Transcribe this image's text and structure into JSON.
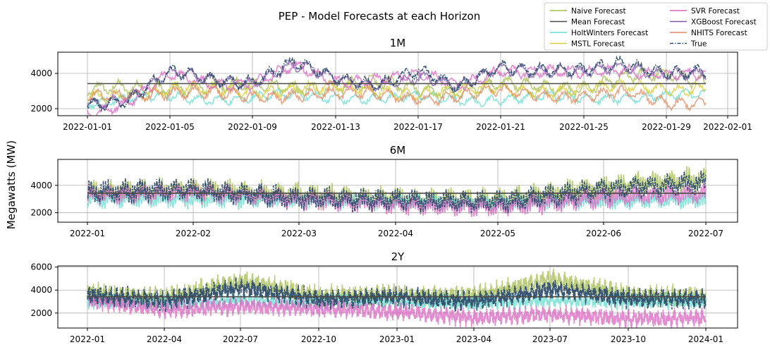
{
  "figure": {
    "title": "PEP - Model Forecasts at each Horizon",
    "ylabel": "Megawatts (MW)"
  },
  "legend": {
    "placement": "top-right",
    "entries": [
      {
        "label": "Naive Forecast",
        "color": "#a6bd4f",
        "style": "solid"
      },
      {
        "label": "SVR Forecast",
        "color": "#d966c0",
        "style": "solid"
      },
      {
        "label": "Mean Forecast",
        "color": "#4a4a4a",
        "style": "solid"
      },
      {
        "label": "XGBoost Forecast",
        "color": "#7b5aa6",
        "style": "solid"
      },
      {
        "label": "HoltWinters Forecast",
        "color": "#67dcd0",
        "style": "solid"
      },
      {
        "label": "NHITS Forecast",
        "color": "#e08a60",
        "style": "solid"
      },
      {
        "label": "MSTL Forecast",
        "color": "#d9cc3a",
        "style": "solid"
      },
      {
        "label": "True",
        "color": "#2f4d6e",
        "style": "dashdot"
      }
    ]
  },
  "chart_data": [
    {
      "type": "line",
      "title": "1M",
      "xlabel": "",
      "ylabel": "",
      "grid": true,
      "x_ticks": [
        "2022-01-01",
        "2022-01-05",
        "2022-01-09",
        "2022-01-13",
        "2022-01-17",
        "2022-01-21",
        "2022-01-25",
        "2022-01-29",
        "2022-02-01"
      ],
      "y_ticks": [
        2000,
        4000
      ],
      "ylim": [
        1600,
        5200
      ],
      "series": [
        {
          "name": "Mean Forecast",
          "values": [
            3420,
            3420
          ]
        },
        {
          "name": "True",
          "x": [
            "2022-01-01",
            "2022-01-03",
            "2022-01-05",
            "2022-01-07",
            "2022-01-09",
            "2022-01-11",
            "2022-01-13",
            "2022-01-15",
            "2022-01-17",
            "2022-01-19",
            "2022-01-21",
            "2022-01-23",
            "2022-01-25",
            "2022-01-27",
            "2022-01-29",
            "2022-01-31"
          ],
          "values": [
            2300,
            2600,
            4000,
            3600,
            3700,
            4600,
            3600,
            3500,
            4200,
            3000,
            4500,
            4300,
            4000,
            4600,
            4200,
            4000
          ]
        },
        {
          "name": "XGBoost Forecast",
          "x": [
            "2022-01-01",
            "2022-01-03",
            "2022-01-05",
            "2022-01-07",
            "2022-01-09",
            "2022-01-11",
            "2022-01-13",
            "2022-01-15",
            "2022-01-17",
            "2022-01-19",
            "2022-01-21",
            "2022-01-23",
            "2022-01-25",
            "2022-01-27",
            "2022-01-29",
            "2022-01-31"
          ],
          "values": [
            2300,
            2700,
            3900,
            3600,
            3600,
            4400,
            3600,
            3500,
            3800,
            3100,
            4400,
            4200,
            3900,
            4400,
            4100,
            3900
          ]
        },
        {
          "name": "SVR Forecast",
          "x": [
            "2022-01-01",
            "2022-01-03",
            "2022-01-05",
            "2022-01-07",
            "2022-01-09",
            "2022-01-11",
            "2022-01-13",
            "2022-01-15",
            "2022-01-17",
            "2022-01-19",
            "2022-01-21",
            "2022-01-23",
            "2022-01-25",
            "2022-01-27",
            "2022-01-29",
            "2022-01-31"
          ],
          "values": [
            1800,
            2400,
            3800,
            3500,
            3500,
            4300,
            3500,
            3800,
            3900,
            3200,
            4300,
            4100,
            3900,
            4300,
            4000,
            3800
          ]
        },
        {
          "name": "Naive Forecast",
          "x": [
            "2022-01-01",
            "2022-01-03",
            "2022-01-05",
            "2022-01-07",
            "2022-01-09",
            "2022-01-11",
            "2022-01-13",
            "2022-01-15",
            "2022-01-17",
            "2022-01-19",
            "2022-01-21",
            "2022-01-23",
            "2022-01-25",
            "2022-01-27",
            "2022-01-29",
            "2022-01-31"
          ],
          "values": [
            2900,
            3100,
            3300,
            3200,
            3200,
            3300,
            3300,
            3300,
            3200,
            3100,
            3300,
            3200,
            3300,
            3700,
            3800,
            3600
          ]
        },
        {
          "name": "HoltWinters Forecast",
          "x": [
            "2022-01-01",
            "2022-01-03",
            "2022-01-05",
            "2022-01-07",
            "2022-01-09",
            "2022-01-11",
            "2022-01-13",
            "2022-01-15",
            "2022-01-17",
            "2022-01-19",
            "2022-01-21",
            "2022-01-23",
            "2022-01-25",
            "2022-01-27",
            "2022-01-29",
            "2022-01-31"
          ],
          "values": [
            2400,
            2500,
            2700,
            2600,
            2600,
            2700,
            2700,
            2600,
            2600,
            2500,
            2600,
            2600,
            2600,
            2700,
            2700,
            2700
          ]
        },
        {
          "name": "MSTL Forecast",
          "x": [
            "2022-01-01",
            "2022-01-03",
            "2022-01-05",
            "2022-01-07",
            "2022-01-09",
            "2022-01-11",
            "2022-01-13",
            "2022-01-15",
            "2022-01-17",
            "2022-01-19",
            "2022-01-21",
            "2022-01-23",
            "2022-01-25",
            "2022-01-27",
            "2022-01-29",
            "2022-01-31"
          ],
          "values": [
            2600,
            2900,
            3100,
            3000,
            3000,
            3200,
            3100,
            3000,
            3000,
            2900,
            3100,
            3100,
            3100,
            3200,
            3200,
            3200
          ]
        },
        {
          "name": "NHITS Forecast",
          "x": [
            "2022-01-01",
            "2022-01-03",
            "2022-01-05",
            "2022-01-07",
            "2022-01-09",
            "2022-01-11",
            "2022-01-13",
            "2022-01-15",
            "2022-01-17",
            "2022-01-19",
            "2022-01-21",
            "2022-01-23",
            "2022-01-25",
            "2022-01-27",
            "2022-01-29",
            "2022-01-31"
          ],
          "values": [
            2500,
            2800,
            3000,
            2800,
            2600,
            2900,
            2800,
            2700,
            2700,
            2700,
            2900,
            2800,
            2800,
            2800,
            2300,
            2500
          ]
        }
      ]
    },
    {
      "type": "line",
      "title": "6M",
      "xlabel": "",
      "ylabel": "",
      "grid": true,
      "x_ticks": [
        "2022-01",
        "2022-02",
        "2022-03",
        "2022-04",
        "2022-05",
        "2022-06",
        "2022-07"
      ],
      "y_ticks": [
        2000,
        4000
      ],
      "ylim": [
        1300,
        5900
      ],
      "series": [
        {
          "name": "Mean Forecast",
          "values": [
            3420,
            3420
          ]
        },
        {
          "name": "True",
          "x": [
            "2022-01",
            "2022-02",
            "2022-03",
            "2022-04",
            "2022-05",
            "2022-06",
            "2022-07"
          ],
          "values": [
            3500,
            3700,
            3100,
            2900,
            2800,
            3700,
            4200
          ]
        },
        {
          "name": "SVR Forecast",
          "x": [
            "2022-01",
            "2022-02",
            "2022-03",
            "2022-04",
            "2022-05",
            "2022-06",
            "2022-07"
          ],
          "values": [
            3300,
            3500,
            3000,
            2600,
            2400,
            3100,
            3400
          ]
        },
        {
          "name": "Naive Forecast",
          "x": [
            "2022-01",
            "2022-02",
            "2022-03",
            "2022-04",
            "2022-05",
            "2022-06",
            "2022-07"
          ],
          "values": [
            3500,
            3700,
            3300,
            3000,
            2900,
            3900,
            4500
          ]
        },
        {
          "name": "HoltWinters Forecast",
          "x": [
            "2022-01",
            "2022-02",
            "2022-03",
            "2022-04",
            "2022-05",
            "2022-06",
            "2022-07"
          ],
          "values": [
            2900,
            3000,
            2900,
            2800,
            2700,
            2800,
            2900
          ]
        }
      ]
    },
    {
      "type": "line",
      "title": "2Y",
      "xlabel": "",
      "ylabel": "",
      "grid": true,
      "x_ticks": [
        "2022-01",
        "2022-04",
        "2022-07",
        "2022-10",
        "2023-01",
        "2023-04",
        "2023-07",
        "2023-10",
        "2024-01"
      ],
      "y_ticks": [
        2000,
        4000,
        6000
      ],
      "ylim": [
        700,
        6100
      ],
      "series": [
        {
          "name": "Mean Forecast",
          "values": [
            3420,
            3420
          ]
        },
        {
          "name": "True",
          "x": [
            "2022-01",
            "2022-04",
            "2022-07",
            "2022-10",
            "2023-01",
            "2023-04",
            "2023-07",
            "2023-10",
            "2024-01"
          ],
          "values": [
            3600,
            3100,
            4200,
            3200,
            3400,
            3000,
            4100,
            3300,
            3200
          ]
        },
        {
          "name": "SVR Forecast",
          "x": [
            "2022-01",
            "2022-04",
            "2022-07",
            "2022-10",
            "2023-01",
            "2023-04",
            "2023-07",
            "2023-10",
            "2024-01"
          ],
          "values": [
            3100,
            2300,
            2600,
            2400,
            2100,
            1600,
            1900,
            1500,
            1600
          ]
        },
        {
          "name": "Naive Forecast",
          "x": [
            "2022-01",
            "2022-04",
            "2022-07",
            "2022-10",
            "2023-01",
            "2023-04",
            "2023-07",
            "2023-10",
            "2024-01"
          ],
          "values": [
            3800,
            3300,
            4800,
            3500,
            3600,
            3500,
            4900,
            3600,
            3400
          ]
        },
        {
          "name": "HoltWinters Forecast",
          "x": [
            "2022-01",
            "2022-04",
            "2022-07",
            "2022-10",
            "2023-01",
            "2023-04",
            "2023-07",
            "2023-10",
            "2024-01"
          ],
          "values": [
            3000,
            2800,
            3100,
            2900,
            3000,
            2900,
            3100,
            3000,
            3000
          ]
        }
      ]
    }
  ]
}
